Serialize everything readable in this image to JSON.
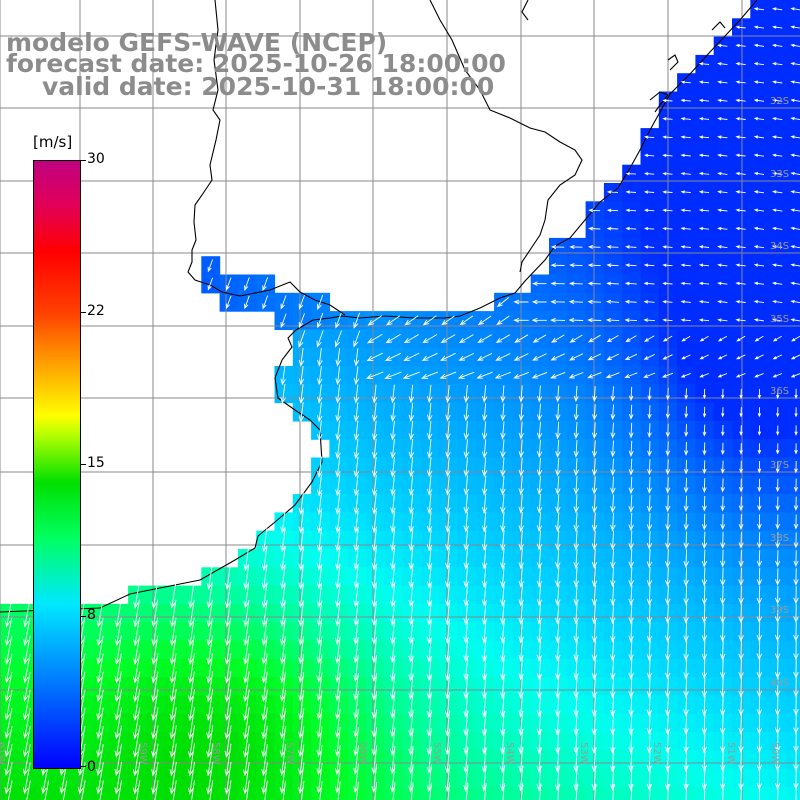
{
  "title": {
    "line1": "modelo GEFS-WAVE (NCEP)",
    "line2": "forecast date: 2025-10-26 18:00:00",
    "line3": "valid date: 2025-10-31 18:00:00"
  },
  "colorbar": {
    "unit": "[m/s]",
    "tick_labels": [
      "30",
      "22",
      "15",
      "8",
      "0"
    ],
    "colors": [
      "#0000ff",
      "#00e8ff",
      "#00e000",
      "#ffff00",
      "#ff0000",
      "#c00080"
    ]
  },
  "map": {
    "model": "GEFS-WAVE",
    "variable": "wind speed and direction",
    "lat_labels": [
      "32S",
      "33S",
      "34S",
      "35S",
      "36S",
      "37S",
      "38S",
      "39S",
      "40S"
    ],
    "lon_labels": [
      "61W",
      "60W",
      "59W",
      "58W",
      "57W",
      "56W",
      "55W",
      "54W",
      "53W",
      "52W",
      "51W",
      "50W"
    ],
    "lon_range": [
      -61.5,
      -50.5
    ],
    "lat_range": [
      -41,
      -31.2
    ]
  }
}
